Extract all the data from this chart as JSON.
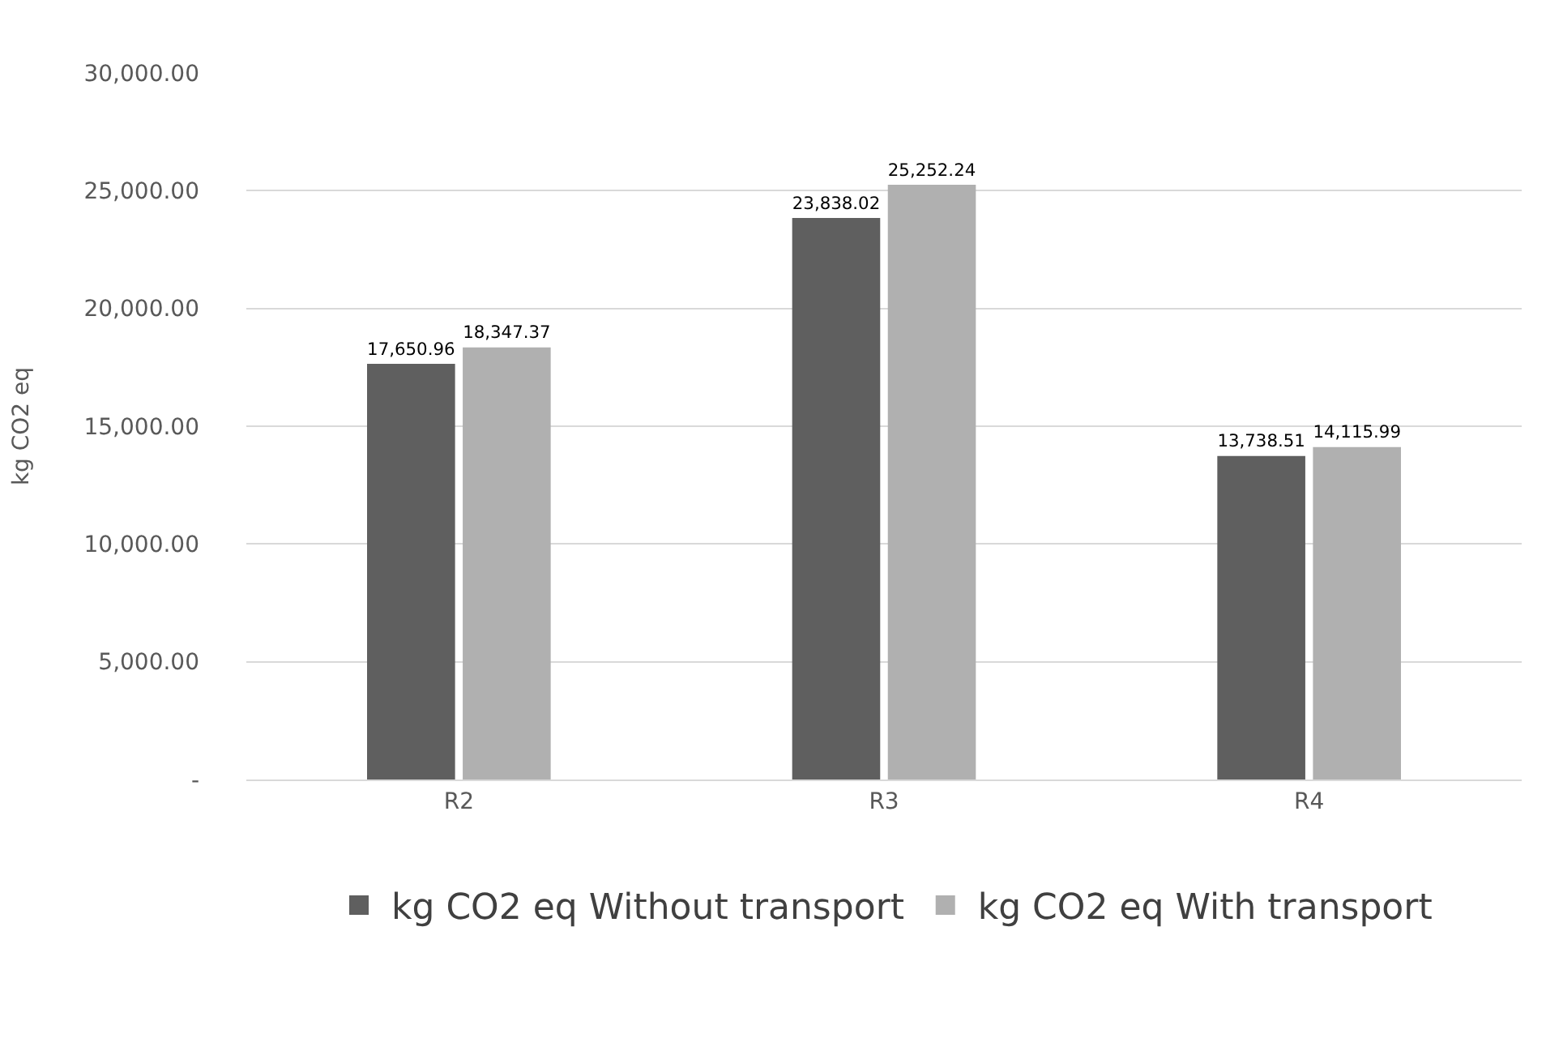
{
  "chart_data": {
    "type": "bar",
    "ylabel": "kg CO2 eq",
    "categories": [
      "R2",
      "R3",
      "R4"
    ],
    "series": [
      {
        "name": "kg CO2 eq Without transport",
        "color": "#5f5f5f",
        "values": [
          17650.96,
          23838.02,
          13738.51
        ],
        "value_labels": [
          "17,650.96",
          "23,838.02",
          "13,738.51"
        ]
      },
      {
        "name": "kg CO2 eq With transport",
        "color": "#b0b0b0",
        "values": [
          18347.37,
          25252.24,
          14115.99
        ],
        "value_labels": [
          "18,347.37",
          "25,252.24",
          "14,115.99"
        ]
      }
    ],
    "ylim": [
      0,
      30000
    ],
    "yticks": [
      {
        "value": 0,
        "label": "-"
      },
      {
        "value": 5000,
        "label": "5,000.00"
      },
      {
        "value": 10000,
        "label": "10,000.00"
      },
      {
        "value": 15000,
        "label": "15,000.00"
      },
      {
        "value": 20000,
        "label": "20,000.00"
      },
      {
        "value": 25000,
        "label": "25,000.00"
      },
      {
        "value": 30000,
        "label": "30,000.00"
      }
    ],
    "grid": "y",
    "legend": "bottom"
  }
}
